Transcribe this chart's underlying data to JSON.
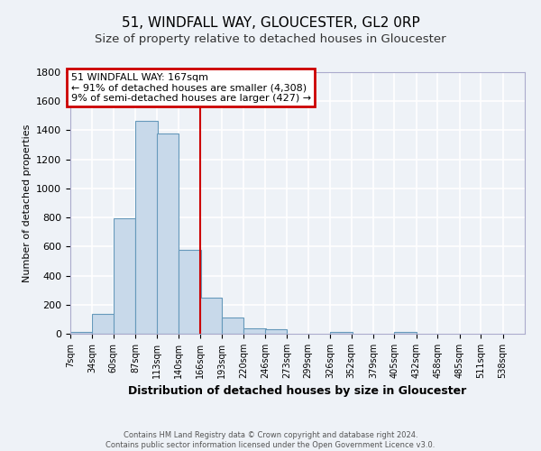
{
  "title": "51, WINDFALL WAY, GLOUCESTER, GL2 0RP",
  "subtitle": "Size of property relative to detached houses in Gloucester",
  "xlabel": "Distribution of detached houses by size in Gloucester",
  "ylabel": "Number of detached properties",
  "bin_labels": [
    "7sqm",
    "34sqm",
    "60sqm",
    "87sqm",
    "113sqm",
    "140sqm",
    "166sqm",
    "193sqm",
    "220sqm",
    "246sqm",
    "273sqm",
    "299sqm",
    "326sqm",
    "352sqm",
    "379sqm",
    "405sqm",
    "432sqm",
    "458sqm",
    "485sqm",
    "511sqm",
    "538sqm"
  ],
  "bin_edges": [
    7,
    34,
    60,
    87,
    113,
    140,
    166,
    193,
    220,
    246,
    273,
    299,
    326,
    352,
    379,
    405,
    432,
    458,
    485,
    511,
    538
  ],
  "bin_width": 27,
  "bar_heights": [
    10,
    135,
    795,
    1465,
    1375,
    575,
    250,
    110,
    35,
    28,
    0,
    0,
    15,
    0,
    0,
    10,
    0,
    0,
    0,
    0,
    0
  ],
  "bar_color": "#c8d9ea",
  "bar_edge_color": "#6699bb",
  "vline_x": 166,
  "vline_color": "#cc0000",
  "ylim": [
    0,
    1800
  ],
  "yticks": [
    0,
    200,
    400,
    600,
    800,
    1000,
    1200,
    1400,
    1600,
    1800
  ],
  "annotation_title": "51 WINDFALL WAY: 167sqm",
  "annotation_line1": "← 91% of detached houses are smaller (4,308)",
  "annotation_line2": "9% of semi-detached houses are larger (427) →",
  "annotation_box_color": "#cc0000",
  "footer1": "Contains HM Land Registry data © Crown copyright and database right 2024.",
  "footer2": "Contains public sector information licensed under the Open Government Licence v3.0.",
  "background_color": "#eef2f7",
  "grid_color": "#ffffff",
  "title_fontsize": 11,
  "subtitle_fontsize": 9.5,
  "xlabel_fontsize": 9,
  "ylabel_fontsize": 8
}
